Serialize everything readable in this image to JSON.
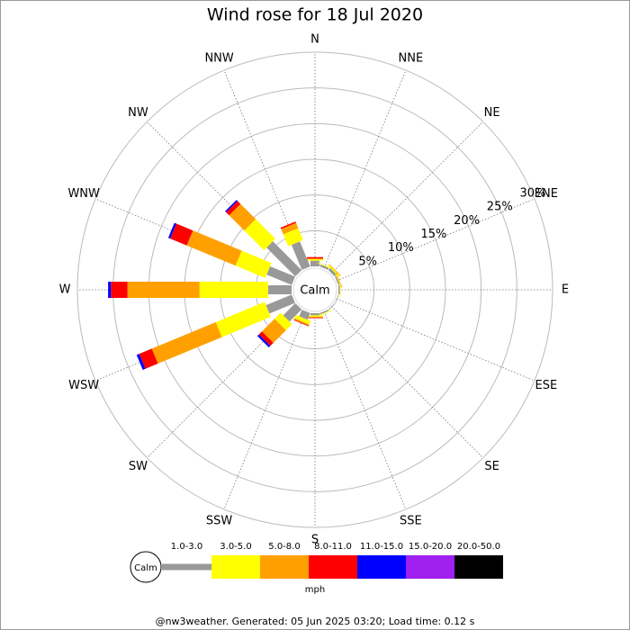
{
  "chart_data": {
    "type": "windrose",
    "title": "Wind rose for 18 Jul 2020",
    "categories": [
      "N",
      "NNE",
      "NE",
      "ENE",
      "E",
      "ESE",
      "SE",
      "SSE",
      "S",
      "SSW",
      "SW",
      "WSW",
      "W",
      "WNW",
      "NW",
      "NNW"
    ],
    "calm_label": "Calm",
    "unit_label": "mph",
    "rlim": [
      0,
      30
    ],
    "rticks": [
      {
        "value": 5,
        "label": "5%"
      },
      {
        "value": 10,
        "label": "10%"
      },
      {
        "value": 15,
        "label": "15%"
      },
      {
        "value": 20,
        "label": "20%"
      },
      {
        "value": 25,
        "label": "25%"
      },
      {
        "value": 30,
        "label": "30%"
      }
    ],
    "series": [
      {
        "name": "1.0-3.0",
        "color": "#999999",
        "values": [
          0.8,
          0.3,
          0.4,
          0.2,
          0.2,
          0.1,
          0.1,
          0.2,
          0.3,
          1.0,
          2.4,
          3.9,
          3.3,
          3.8,
          5.7,
          3.8
        ]
      },
      {
        "name": "3.0-5.0",
        "color": "#ffff00",
        "values": [
          0.2,
          0.1,
          0.2,
          0.1,
          0.1,
          0,
          0,
          0.1,
          0.2,
          0.5,
          1.2,
          7.4,
          9.6,
          4.5,
          3.9,
          1.8
        ]
      },
      {
        "name": "5.0-8.0",
        "color": "#ffa000",
        "values": [
          0.1,
          0,
          0.1,
          0.1,
          0,
          0,
          0,
          0,
          0.1,
          0.2,
          2.5,
          9.7,
          10.1,
          7.4,
          3.0,
          0.8
        ]
      },
      {
        "name": "8.0-11.0",
        "color": "#ff0000",
        "values": [
          0.2,
          0,
          0,
          0,
          0,
          0,
          0,
          0,
          0.1,
          0.1,
          0.6,
          1.9,
          2.3,
          2.5,
          0.6,
          0.2
        ]
      },
      {
        "name": "11.0-15.0",
        "color": "#0000ff",
        "values": [
          0,
          0,
          0,
          0,
          0,
          0,
          0,
          0,
          0,
          0,
          0.3,
          0.4,
          0.4,
          0.3,
          0.2,
          0
        ]
      },
      {
        "name": "15.0-20.0",
        "color": "#a020f0",
        "values": [
          0,
          0,
          0,
          0,
          0,
          0,
          0,
          0,
          0,
          0,
          0,
          0,
          0,
          0,
          0,
          0
        ]
      },
      {
        "name": "20.0-50.0",
        "color": "#000000",
        "values": [
          0,
          0,
          0,
          0,
          0,
          0,
          0,
          0,
          0,
          0,
          0,
          0,
          0,
          0,
          0,
          0
        ]
      }
    ],
    "footer": "@nw3weather. Generated: 05 Jun 2025 03:20; Load time: 0.12 s"
  }
}
